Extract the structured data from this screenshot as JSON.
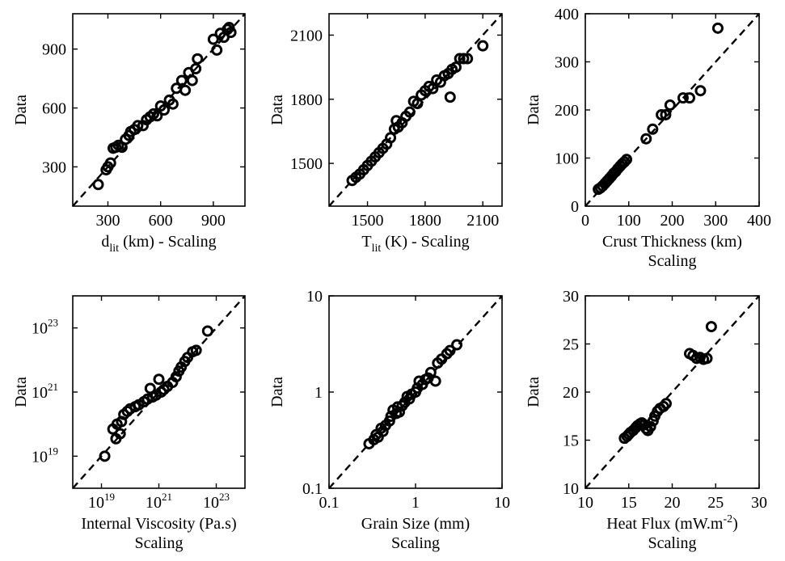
{
  "chart_data": [
    {
      "id": "dlit",
      "type": "scatter",
      "scale": "linear",
      "xlabel": "d",
      "xlabel_sub": "lit",
      "xlabel_rest": " (km) - Scaling",
      "xlabel_line2": "",
      "ylabel": "Data",
      "xlim": [
        100,
        1080
      ],
      "ylim": [
        100,
        1080
      ],
      "xticks": [
        300,
        600,
        900
      ],
      "yticks": [
        300,
        600,
        900
      ],
      "xtick_labels": [
        "300",
        "600",
        "900"
      ],
      "ytick_labels": [
        "300",
        "600",
        "900"
      ],
      "reference_line": "y = x",
      "points": [
        [
          245,
          210
        ],
        [
          290,
          285
        ],
        [
          300,
          300
        ],
        [
          315,
          320
        ],
        [
          330,
          395
        ],
        [
          345,
          400
        ],
        [
          360,
          410
        ],
        [
          380,
          400
        ],
        [
          400,
          440
        ],
        [
          420,
          460
        ],
        [
          430,
          480
        ],
        [
          450,
          490
        ],
        [
          470,
          510
        ],
        [
          500,
          510
        ],
        [
          520,
          540
        ],
        [
          540,
          555
        ],
        [
          560,
          570
        ],
        [
          580,
          560
        ],
        [
          600,
          610
        ],
        [
          620,
          590
        ],
        [
          650,
          640
        ],
        [
          670,
          620
        ],
        [
          690,
          700
        ],
        [
          720,
          740
        ],
        [
          740,
          690
        ],
        [
          760,
          780
        ],
        [
          780,
          740
        ],
        [
          800,
          800
        ],
        [
          810,
          850
        ],
        [
          900,
          950
        ],
        [
          920,
          895
        ],
        [
          940,
          980
        ],
        [
          960,
          960
        ],
        [
          980,
          1000
        ],
        [
          990,
          1010
        ],
        [
          1000,
          985
        ]
      ]
    },
    {
      "id": "tlit",
      "type": "scatter",
      "scale": "linear",
      "xlabel": "T",
      "xlabel_sub": "lit",
      "xlabel_rest": " (K) - Scaling",
      "xlabel_line2": "",
      "ylabel": "Data",
      "xlim": [
        1300,
        2200
      ],
      "ylim": [
        1300,
        2200
      ],
      "xticks": [
        1500,
        1800,
        2100
      ],
      "yticks": [
        1500,
        1800,
        2100
      ],
      "xtick_labels": [
        "1500",
        "1800",
        "2100"
      ],
      "ytick_labels": [
        "1500",
        "1800",
        "2100"
      ],
      "reference_line": "y = x",
      "points": [
        [
          1420,
          1420
        ],
        [
          1440,
          1435
        ],
        [
          1460,
          1450
        ],
        [
          1480,
          1470
        ],
        [
          1500,
          1490
        ],
        [
          1520,
          1510
        ],
        [
          1540,
          1530
        ],
        [
          1560,
          1550
        ],
        [
          1580,
          1570
        ],
        [
          1600,
          1590
        ],
        [
          1620,
          1620
        ],
        [
          1640,
          1660
        ],
        [
          1650,
          1700
        ],
        [
          1660,
          1670
        ],
        [
          1680,
          1690
        ],
        [
          1700,
          1720
        ],
        [
          1720,
          1740
        ],
        [
          1740,
          1790
        ],
        [
          1760,
          1780
        ],
        [
          1780,
          1820
        ],
        [
          1800,
          1840
        ],
        [
          1820,
          1860
        ],
        [
          1840,
          1850
        ],
        [
          1860,
          1890
        ],
        [
          1880,
          1880
        ],
        [
          1900,
          1910
        ],
        [
          1920,
          1920
        ],
        [
          1930,
          1810
        ],
        [
          1940,
          1940
        ],
        [
          1960,
          1950
        ],
        [
          1980,
          1990
        ],
        [
          2000,
          1990
        ],
        [
          2020,
          1990
        ],
        [
          2100,
          2050
        ]
      ]
    },
    {
      "id": "crust",
      "type": "scatter",
      "scale": "linear",
      "xlabel": "Crust Thickness (km)",
      "xlabel_sub": "",
      "xlabel_rest": "",
      "xlabel_line2": "Scaling",
      "ylabel": "Data",
      "xlim": [
        0,
        400
      ],
      "ylim": [
        0,
        400
      ],
      "xticks": [
        0,
        100,
        200,
        300,
        400
      ],
      "yticks": [
        0,
        100,
        200,
        300,
        400
      ],
      "xtick_labels": [
        "0",
        "100",
        "200",
        "300",
        "400"
      ],
      "ytick_labels": [
        "0",
        "100",
        "200",
        "300",
        "400"
      ],
      "reference_line": "y = x",
      "points": [
        [
          30,
          35
        ],
        [
          35,
          38
        ],
        [
          40,
          42
        ],
        [
          45,
          47
        ],
        [
          50,
          52
        ],
        [
          55,
          57
        ],
        [
          60,
          62
        ],
        [
          65,
          68
        ],
        [
          70,
          72
        ],
        [
          75,
          78
        ],
        [
          80,
          83
        ],
        [
          85,
          88
        ],
        [
          90,
          92
        ],
        [
          95,
          97
        ],
        [
          140,
          140
        ],
        [
          155,
          160
        ],
        [
          175,
          190
        ],
        [
          185,
          190
        ],
        [
          195,
          210
        ],
        [
          225,
          225
        ],
        [
          240,
          225
        ],
        [
          265,
          240
        ],
        [
          305,
          370
        ]
      ]
    },
    {
      "id": "viscosity",
      "type": "scatter",
      "scale": "log",
      "xlabel": "Internal Viscosity (Pa.s)",
      "xlabel_sub": "",
      "xlabel_rest": "",
      "xlabel_line2": "Scaling",
      "ylabel": "Data",
      "xlim": [
        1e+18,
        1e+24
      ],
      "ylim": [
        1e+18,
        1e+24
      ],
      "xticks": [
        1e+19,
        1e+21,
        1e+23
      ],
      "yticks": [
        1e+19,
        1e+21,
        1e+23
      ],
      "tick_base": "10",
      "xtick_exponents": [
        "19",
        "21",
        "23"
      ],
      "ytick_exponents": [
        "19",
        "21",
        "23"
      ],
      "reference_line": "y = x",
      "points": [
        [
          1.3e+19,
          1e+19
        ],
        [
          2.5e+19,
          7e+19
        ],
        [
          3.2e+19,
          3.5e+19
        ],
        [
          3.5e+19,
          1e+20
        ],
        [
          4.5e+19,
          5e+19
        ],
        [
          5e+19,
          1.2e+20
        ],
        [
          6e+19,
          2e+20
        ],
        [
          8e+19,
          2.5e+20
        ],
        [
          1e+20,
          3e+20
        ],
        [
          1.5e+20,
          3.5e+20
        ],
        [
          2e+20,
          4e+20
        ],
        [
          3e+20,
          5e+20
        ],
        [
          4e+20,
          6e+20
        ],
        [
          5e+20,
          1.3e+21
        ],
        [
          6e+20,
          7e+20
        ],
        [
          8e+20,
          8e+20
        ],
        [
          1e+21,
          2.5e+21
        ],
        [
          1.2e+21,
          1e+21
        ],
        [
          1.5e+21,
          1.2e+21
        ],
        [
          2e+21,
          1.5e+21
        ],
        [
          3e+21,
          2e+21
        ],
        [
          4e+21,
          3e+21
        ],
        [
          5e+21,
          4.5e+21
        ],
        [
          6e+21,
          6e+21
        ],
        [
          8e+21,
          9e+21
        ],
        [
          1e+22,
          1.2e+22
        ],
        [
          1.5e+22,
          1.8e+22
        ],
        [
          2e+22,
          2e+22
        ],
        [
          5e+22,
          8e+22
        ]
      ]
    },
    {
      "id": "grain",
      "type": "scatter",
      "scale": "log",
      "xlabel": "Grain Size (mm)",
      "xlabel_sub": "",
      "xlabel_rest": "",
      "xlabel_line2": "Scaling",
      "ylabel": "Data",
      "xlim": [
        0.1,
        10
      ],
      "ylim": [
        0.1,
        10
      ],
      "xticks": [
        0.1,
        1,
        10
      ],
      "yticks": [
        0.1,
        1,
        10
      ],
      "xtick_labels": [
        "0.1",
        "1",
        "10"
      ],
      "ytick_labels": [
        "0.1",
        "1",
        "10"
      ],
      "reference_line": "y = x",
      "points": [
        [
          0.29,
          0.29
        ],
        [
          0.33,
          0.32
        ],
        [
          0.35,
          0.36
        ],
        [
          0.37,
          0.34
        ],
        [
          0.4,
          0.42
        ],
        [
          0.42,
          0.39
        ],
        [
          0.45,
          0.45
        ],
        [
          0.5,
          0.5
        ],
        [
          0.52,
          0.56
        ],
        [
          0.55,
          0.65
        ],
        [
          0.6,
          0.6
        ],
        [
          0.62,
          0.7
        ],
        [
          0.65,
          0.62
        ],
        [
          0.7,
          0.72
        ],
        [
          0.75,
          0.78
        ],
        [
          0.8,
          0.9
        ],
        [
          0.85,
          0.85
        ],
        [
          0.9,
          0.95
        ],
        [
          1,
          1
        ],
        [
          1.05,
          1.1
        ],
        [
          1.1,
          1.3
        ],
        [
          1.2,
          1.2
        ],
        [
          1.3,
          1.35
        ],
        [
          1.4,
          1.4
        ],
        [
          1.5,
          1.6
        ],
        [
          1.7,
          1.3
        ],
        [
          1.8,
          2.0
        ],
        [
          2.0,
          2.2
        ],
        [
          2.3,
          2.5
        ],
        [
          2.5,
          2.7
        ],
        [
          3,
          3.1
        ]
      ]
    },
    {
      "id": "heatflux",
      "type": "scatter",
      "scale": "linear",
      "xlabel": "Heat Flux (mW.m",
      "xlabel_sup": "-2",
      "xlabel_rest": ")",
      "xlabel_line2": "Scaling",
      "ylabel": "Data",
      "xlim": [
        10,
        30
      ],
      "ylim": [
        10,
        30
      ],
      "xticks": [
        10,
        15,
        20,
        25,
        30
      ],
      "yticks": [
        10,
        15,
        20,
        25,
        30
      ],
      "xtick_labels": [
        "10",
        "15",
        "20",
        "25",
        "30"
      ],
      "ytick_labels": [
        "10",
        "15",
        "20",
        "25",
        "30"
      ],
      "reference_line": "y = x",
      "points": [
        [
          14.5,
          15.2
        ],
        [
          14.8,
          15.4
        ],
        [
          15,
          15.6
        ],
        [
          15.2,
          15.8
        ],
        [
          15.5,
          16.0
        ],
        [
          15.8,
          16.3
        ],
        [
          16,
          16.5
        ],
        [
          16.3,
          16.7
        ],
        [
          16.5,
          16.8
        ],
        [
          16.8,
          16.6
        ],
        [
          17,
          16.2
        ],
        [
          17.2,
          16.0
        ],
        [
          17.5,
          16.4
        ],
        [
          17.8,
          17.0
        ],
        [
          18,
          17.5
        ],
        [
          18.3,
          18.0
        ],
        [
          18.6,
          18.3
        ],
        [
          19,
          18.5
        ],
        [
          19.3,
          18.8
        ],
        [
          22,
          24.0
        ],
        [
          22.4,
          23.8
        ],
        [
          22.8,
          23.5
        ],
        [
          23.2,
          23.6
        ],
        [
          23.6,
          23.4
        ],
        [
          24,
          23.5
        ],
        [
          24.5,
          26.8
        ]
      ]
    }
  ]
}
